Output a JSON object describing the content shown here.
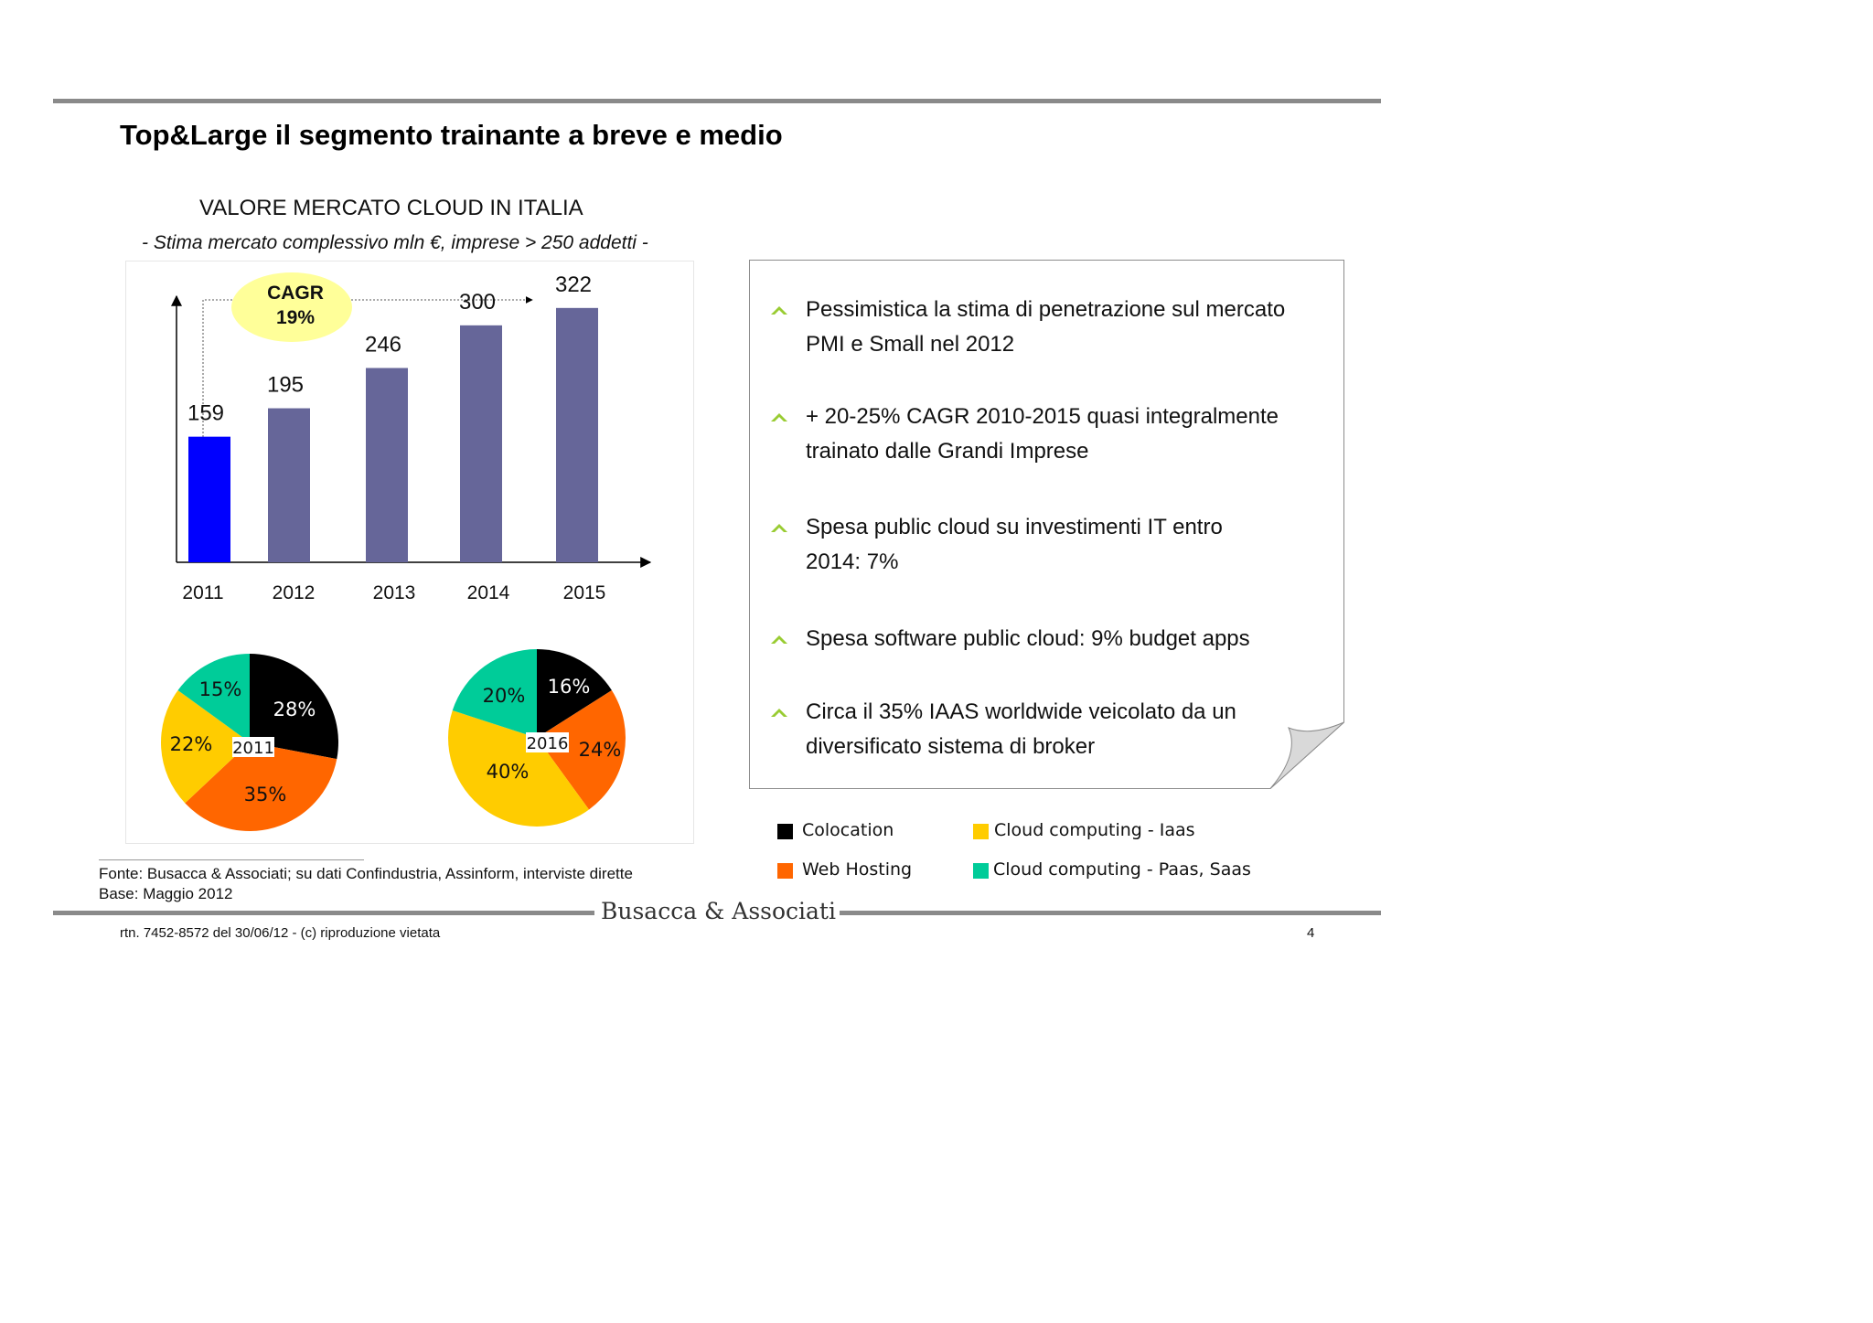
{
  "slide": {
    "title": "Top&Large il segmento trainante a breve e medio",
    "page_number": "4"
  },
  "chart_data": [
    {
      "type": "bar",
      "title": "VALORE MERCATO CLOUD IN ITALIA",
      "subtitle": "- Stima mercato complessivo mln €, imprese > 250 addetti -",
      "categories": [
        "2011",
        "2012",
        "2013",
        "2014",
        "2015"
      ],
      "values": [
        159,
        195,
        246,
        300,
        322
      ],
      "bar_colors": [
        "#0000ff",
        "#666699",
        "#666699",
        "#666699",
        "#666699"
      ],
      "ylim": [
        0,
        360
      ],
      "xlabel": "",
      "ylabel": "",
      "annotation": {
        "line1": "CAGR",
        "line2": "19%"
      }
    },
    {
      "type": "pie",
      "label": "2011",
      "slices": [
        {
          "name": "Colocation",
          "value": 28,
          "label": "28%",
          "color": "#000000"
        },
        {
          "name": "Web Hosting",
          "value": 35,
          "label": "35%",
          "color": "#ff6600"
        },
        {
          "name": "Cloud computing - Iaas",
          "value": 22,
          "label": "22%",
          "color": "#ffcc00"
        },
        {
          "name": "Cloud computing - Paas, Saas",
          "value": 15,
          "label": "15%",
          "color": "#00cc99"
        }
      ]
    },
    {
      "type": "pie",
      "label": "2016",
      "slices": [
        {
          "name": "Colocation",
          "value": 16,
          "label": "16%",
          "color": "#000000"
        },
        {
          "name": "Web Hosting",
          "value": 24,
          "label": "24%",
          "color": "#ff6600"
        },
        {
          "name": "Cloud computing - Iaas",
          "value": 40,
          "label": "40%",
          "color": "#ffcc00"
        },
        {
          "name": "Cloud computing - Paas, Saas",
          "value": 20,
          "label": "20%",
          "color": "#00cc99"
        }
      ]
    }
  ],
  "notes": {
    "bullets": [
      "Pessimistica la stima di penetrazione sul mercato PMI e Small nel 2012",
      "+ 20-25% CAGR 2010-2015 quasi integralmente trainato dalle Grandi Imprese",
      "Spesa public cloud su investimenti IT entro 2014: 7%",
      "Spesa software public cloud: 9% budget apps",
      "Circa il 35% IAAS worldwide veicolato da un diversificato sistema di broker"
    ],
    "bullet_icon": "chevron-up-icon",
    "bullet_color": "#99cc33"
  },
  "legend": [
    {
      "label": "Colocation",
      "color": "#000000"
    },
    {
      "label": "Cloud computing - Iaas",
      "color": "#ffcc00"
    },
    {
      "label": "Web Hosting",
      "color": "#ff6600"
    },
    {
      "label": "Cloud computing - Paas, Saas",
      "color": "#00cc99"
    }
  ],
  "footer": {
    "source": "Fonte: Busacca & Associati; su dati Confindustria, Assinform, interviste dirette",
    "base": "Base: Maggio 2012",
    "brand": "Busacca & Associati",
    "note": "rtn. 7452-8572 del 30/06/12 - (c) riproduzione vietata"
  }
}
